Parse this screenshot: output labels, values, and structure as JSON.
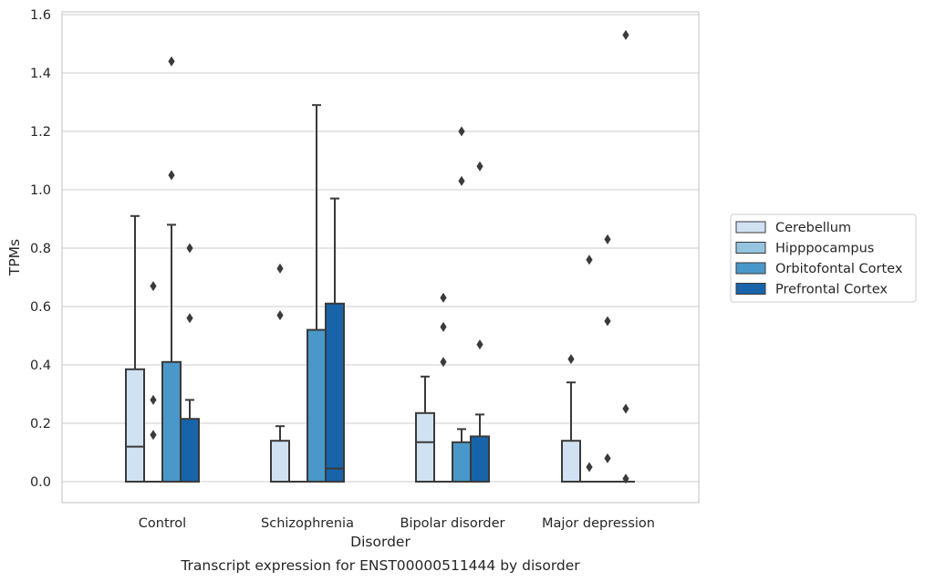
{
  "chart_data": {
    "type": "box",
    "xlabel": "Disorder",
    "ylabel": "TPMs",
    "caption": "Transcript expression for ENST00000511444 by disorder",
    "ylim": [
      -0.07,
      1.61
    ],
    "yticks": [
      "0.0",
      "0.2",
      "0.4",
      "0.6",
      "0.8",
      "1.0",
      "1.2",
      "1.4",
      "1.6"
    ],
    "grid": true,
    "legend_position": "center-right",
    "categories": [
      "Control",
      "Schizophrenia",
      "Bipolar disorder",
      "Major depression"
    ],
    "series": [
      {
        "name": "Cerebellum",
        "color": "#d0e1f2",
        "boxes": [
          {
            "min": 0,
            "q1": 0,
            "median": 0.12,
            "q3": 0.385,
            "max": 0.91,
            "outliers": []
          },
          {
            "min": 0,
            "q1": 0,
            "median": 0,
            "q3": 0.14,
            "max": 0.19,
            "outliers": [
              0.57,
              0.73
            ]
          },
          {
            "min": 0,
            "q1": 0,
            "median": 0.135,
            "q3": 0.235,
            "max": 0.36,
            "outliers": []
          },
          {
            "min": 0,
            "q1": 0,
            "median": 0,
            "q3": 0.14,
            "max": 0.34,
            "outliers": [
              0.42
            ]
          }
        ]
      },
      {
        "name": "Hipppocampus",
        "color": "#94c4df",
        "boxes": [
          {
            "min": 0,
            "q1": 0,
            "median": 0,
            "q3": 0,
            "max": 0,
            "outliers": [
              0.16,
              0.28,
              0.67
            ]
          },
          {
            "min": 0,
            "q1": 0,
            "median": 0,
            "q3": 0,
            "max": 0,
            "outliers": []
          },
          {
            "min": 0,
            "q1": 0,
            "median": 0,
            "q3": 0,
            "max": 0,
            "outliers": [
              0.41,
              0.53,
              0.63
            ]
          },
          {
            "min": 0,
            "q1": 0,
            "median": 0,
            "q3": 0,
            "max": 0,
            "outliers": [
              0.05,
              0.76
            ]
          }
        ]
      },
      {
        "name": "Orbitofontal Cortex",
        "color": "#4a98c9",
        "boxes": [
          {
            "min": 0,
            "q1": 0,
            "median": 0,
            "q3": 0.41,
            "max": 0.88,
            "outliers": [
              1.05,
              1.44
            ]
          },
          {
            "min": 0,
            "q1": 0,
            "median": 0,
            "q3": 0.52,
            "max": 1.29,
            "outliers": []
          },
          {
            "min": 0,
            "q1": 0,
            "median": 0,
            "q3": 0.135,
            "max": 0.18,
            "outliers": [
              1.03,
              1.2
            ]
          },
          {
            "min": 0,
            "q1": 0,
            "median": 0,
            "q3": 0,
            "max": 0,
            "outliers": [
              0.08,
              0.55,
              0.83
            ]
          }
        ]
      },
      {
        "name": "Prefrontal Cortex",
        "color": "#1764ab",
        "boxes": [
          {
            "min": 0,
            "q1": 0,
            "median": 0,
            "q3": 0.215,
            "max": 0.28,
            "outliers": [
              0.56,
              0.8
            ]
          },
          {
            "min": 0,
            "q1": 0,
            "median": 0.045,
            "q3": 0.61,
            "max": 0.97,
            "outliers": []
          },
          {
            "min": 0,
            "q1": 0,
            "median": 0,
            "q3": 0.155,
            "max": 0.23,
            "outliers": [
              0.47,
              1.08
            ]
          },
          {
            "min": 0,
            "q1": 0,
            "median": 0,
            "q3": 0,
            "max": 0,
            "outliers": [
              0.01,
              0.25,
              1.53
            ]
          }
        ]
      }
    ]
  }
}
